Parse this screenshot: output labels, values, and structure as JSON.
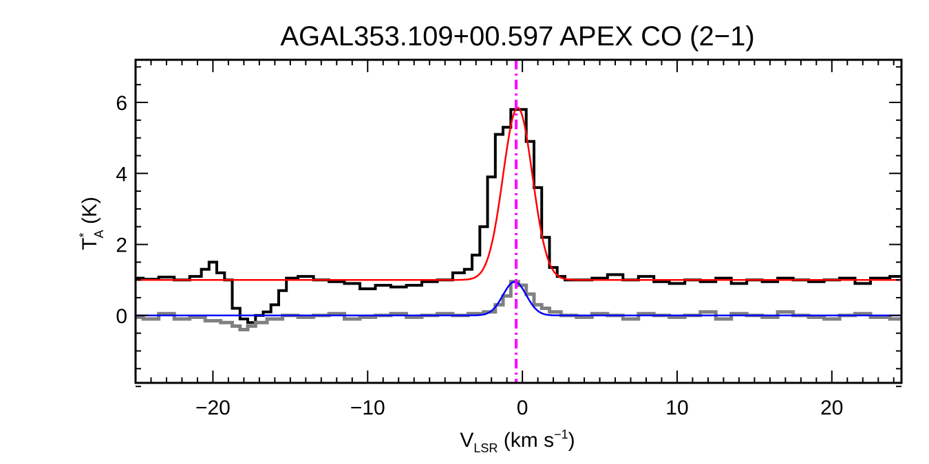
{
  "chart_data": {
    "type": "line",
    "title": "AGAL353.109+00.597  APEX CO (2−1)",
    "xlabel": {
      "main": "V",
      "sub": "LSR",
      "rest": " (km s",
      "sup": "−1",
      "end": ")"
    },
    "ylabel": {
      "main": "T",
      "sup": "*",
      "sub": "A",
      "rest": " (K)"
    },
    "xlim": [
      -25,
      24.5
    ],
    "ylim": [
      -1.9,
      7.2
    ],
    "xticks": [
      -20,
      -10,
      0,
      10,
      20
    ],
    "xtick_labels": [
      "−20",
      "−10",
      "0",
      "10",
      "20"
    ],
    "yticks": [
      0,
      2,
      4,
      6
    ],
    "ytick_labels": [
      "0",
      "2",
      "4",
      "6"
    ],
    "grid": false,
    "legend": "none",
    "vline": {
      "x": -0.4,
      "color": "#ff00ff",
      "style": "dash-dot"
    },
    "series": [
      {
        "color": "#000000",
        "style": "steps",
        "x": [
          -25,
          -24,
          -23,
          -22,
          -21,
          -20.5,
          -20,
          -19.5,
          -19,
          -18.5,
          -18,
          -17.5,
          -17,
          -16.5,
          -16,
          -15.5,
          -15,
          -14,
          -13,
          -12,
          -11,
          -10,
          -9,
          -8,
          -7,
          -6,
          -5,
          -4,
          -3.5,
          -3,
          -2.5,
          -2,
          -1.5,
          -1,
          -0.5,
          0,
          0.5,
          1,
          1.5,
          2,
          2.5,
          3,
          4,
          5,
          6,
          7,
          8,
          9,
          10,
          11,
          12,
          13,
          14,
          15,
          16,
          17,
          18,
          19,
          20,
          21,
          22,
          23,
          24.5
        ],
        "y": [
          1.05,
          1.02,
          1.08,
          1.0,
          1.1,
          1.3,
          1.5,
          1.2,
          1.0,
          0.2,
          -0.1,
          -0.2,
          0.0,
          0.1,
          0.3,
          0.7,
          1.05,
          1.1,
          1.0,
          0.95,
          0.9,
          0.75,
          0.85,
          0.8,
          0.85,
          0.95,
          1.0,
          1.2,
          1.3,
          1.7,
          2.5,
          3.9,
          5.1,
          5.3,
          5.8,
          5.8,
          4.9,
          3.6,
          2.2,
          1.35,
          1.1,
          1.0,
          1.0,
          1.05,
          1.15,
          1.0,
          1.1,
          0.95,
          0.9,
          1.0,
          0.95,
          1.05,
          0.9,
          1.0,
          0.95,
          1.05,
          1.0,
          0.95,
          1.0,
          1.05,
          0.9,
          1.05,
          1.1
        ]
      },
      {
        "color": "#ff0000",
        "style": "fit",
        "baseline": 1.0,
        "amplitude": 4.85,
        "center": -0.3,
        "sigma": 0.95
      },
      {
        "color": "#808080",
        "style": "steps",
        "x": [
          -25,
          -24,
          -23,
          -22,
          -21,
          -20,
          -19,
          -18.5,
          -18,
          -17.5,
          -17,
          -16,
          -15,
          -14,
          -13,
          -12,
          -11,
          -10,
          -9,
          -8,
          -7,
          -6,
          -5,
          -4,
          -3,
          -2,
          -1.5,
          -1,
          -0.5,
          0,
          0.5,
          1,
          1.5,
          2,
          3,
          4,
          5,
          6,
          7,
          8,
          9,
          10,
          11,
          12,
          13,
          14,
          15,
          16,
          17,
          18,
          19,
          20,
          21,
          22,
          23,
          24.5
        ],
        "y": [
          -0.05,
          -0.1,
          0.05,
          -0.1,
          -0.05,
          -0.15,
          -0.2,
          -0.3,
          -0.4,
          -0.3,
          -0.2,
          -0.1,
          0.0,
          -0.05,
          0.0,
          0.05,
          -0.1,
          -0.05,
          0.0,
          0.05,
          -0.05,
          0.0,
          0.05,
          0.0,
          0.05,
          0.1,
          0.3,
          0.55,
          0.95,
          0.85,
          0.6,
          0.3,
          0.2,
          0.1,
          0.0,
          -0.05,
          0.05,
          0.0,
          -0.1,
          0.05,
          0.0,
          -0.05,
          0.0,
          0.1,
          -0.1,
          0.05,
          0.0,
          -0.05,
          0.1,
          0.0,
          -0.05,
          -0.1,
          0.0,
          0.05,
          -0.05,
          -0.1
        ]
      },
      {
        "color": "#0000ff",
        "style": "fit",
        "baseline": 0.0,
        "amplitude": 0.95,
        "center": -0.5,
        "sigma": 0.75
      }
    ]
  }
}
